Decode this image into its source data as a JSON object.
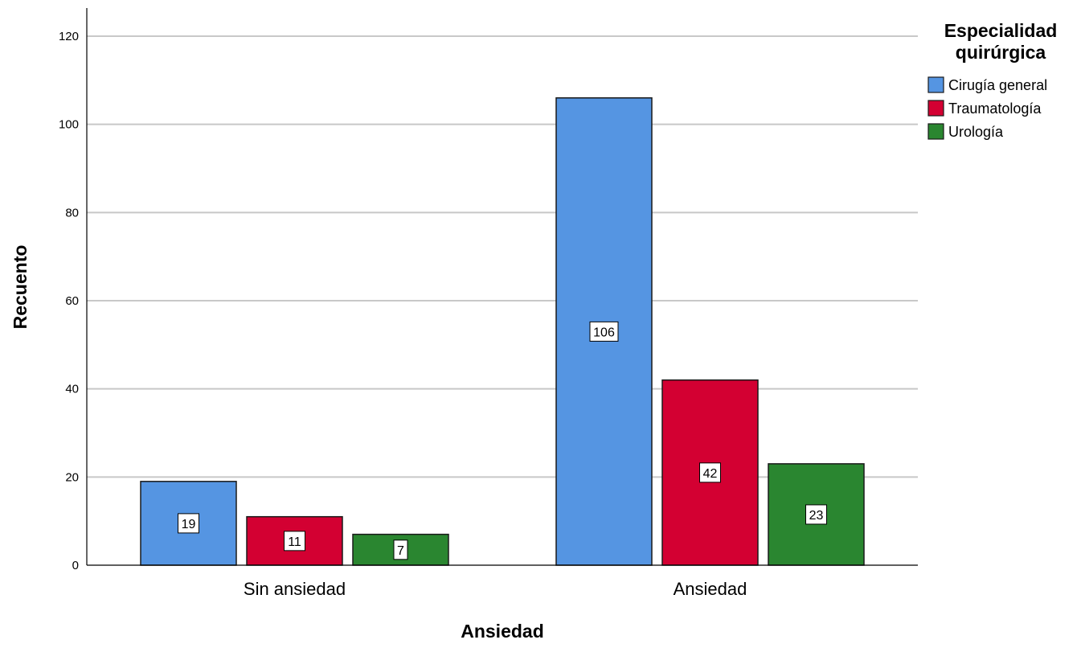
{
  "chart_data": {
    "type": "bar",
    "categories": [
      "Sin ansiedad",
      "Ansiedad"
    ],
    "series": [
      {
        "name": "Cirugía general",
        "values": [
          19,
          106
        ],
        "color": "#5595e2"
      },
      {
        "name": "Traumatología",
        "values": [
          11,
          42
        ],
        "color": "#d30032"
      },
      {
        "name": "Urología",
        "values": [
          7,
          23
        ],
        "color": "#2a8630"
      }
    ],
    "xlabel": "Ansiedad",
    "ylabel": "Recuento",
    "ylim": [
      0,
      120
    ],
    "yticks": [
      "0",
      "20",
      "40",
      "60",
      "80",
      "100",
      "120"
    ],
    "grid": true,
    "data_labels": true,
    "legend": {
      "title_lines": [
        "Especialidad",
        "quirúrgica"
      ],
      "position": "top-right"
    }
  }
}
